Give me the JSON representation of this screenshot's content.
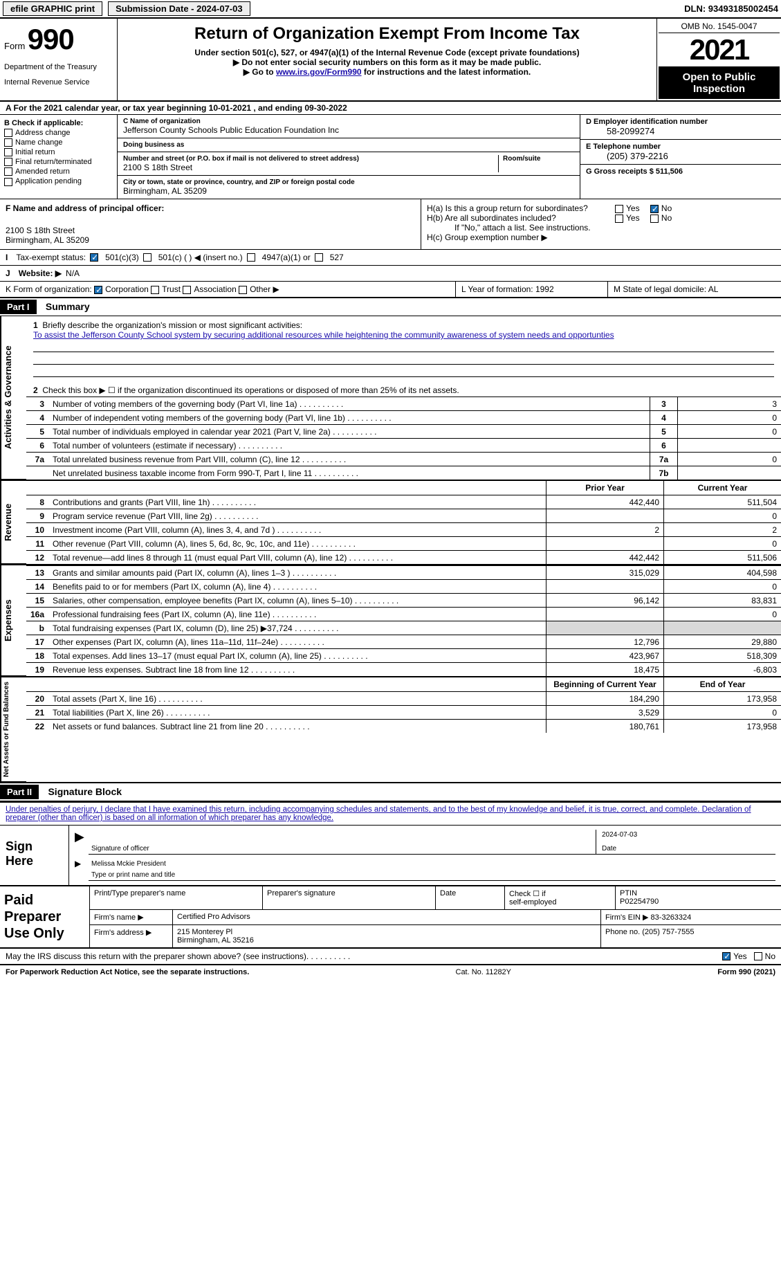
{
  "topbar": {
    "efile": "efile GRAPHIC print",
    "submission": "Submission Date - 2024-07-03",
    "dln": "DLN: 93493185002454"
  },
  "header": {
    "form_prefix": "Form",
    "form_number": "990",
    "treasury": "Department of the Treasury",
    "irs": "Internal Revenue Service",
    "title": "Return of Organization Exempt From Income Tax",
    "sub1": "Under section 501(c), 527, or 4947(a)(1) of the Internal Revenue Code (except private foundations)",
    "sub2": "▶ Do not enter social security numbers on this form as it may be made public.",
    "sub3_pre": "▶ Go to ",
    "sub3_link": "www.irs.gov/Form990",
    "sub3_post": " for instructions and the latest information.",
    "omb": "OMB No. 1545-0047",
    "year": "2021",
    "inspect": "Open to Public Inspection"
  },
  "lineA": "A For the 2021 calendar year, or tax year beginning 10-01-2021    , and ending 09-30-2022",
  "colB": {
    "head": "B Check if applicable:",
    "items": [
      "Address change",
      "Name change",
      "Initial return",
      "Final return/terminated",
      "Amended return",
      "Application pending"
    ]
  },
  "colC": {
    "name_label": "C Name of organization",
    "name": "Jefferson County Schools Public Education Foundation Inc",
    "dba_label": "Doing business as",
    "dba": "",
    "street_label": "Number and street (or P.O. box if mail is not delivered to street address)",
    "room_label": "Room/suite",
    "street": "2100 S 18th Street",
    "city_label": "City or town, state or province, country, and ZIP or foreign postal code",
    "city": "Birmingham, AL  35209"
  },
  "colDE": {
    "d_label": "D Employer identification number",
    "d_val": "58-2099274",
    "e_label": "E Telephone number",
    "e_val": "(205) 379-2216",
    "g_label": "G Gross receipts $ 511,506"
  },
  "blockF": {
    "label": "F Name and address of principal officer:",
    "line1": "2100 S 18th Street",
    "line2": "Birmingham, AL  35209"
  },
  "blockH": {
    "ha_label": "H(a)  Is this a group return for subordinates?",
    "hb_label": "H(b)  Are all subordinates included?",
    "hb_note": "If \"No,\" attach a list. See instructions.",
    "hc_label": "H(c)  Group exemption number ▶"
  },
  "rowI": {
    "lead": "I",
    "label": "Tax-exempt status:",
    "opt1": "501(c)(3)",
    "opt2": "501(c) (  ) ◀ (insert no.)",
    "opt3": "4947(a)(1) or",
    "opt4": "527"
  },
  "rowJ": {
    "lead": "J",
    "label": "Website: ▶",
    "val": "N/A"
  },
  "rowK": {
    "lead": "K",
    "label": "Form of organization:",
    "opts": [
      "Corporation",
      "Trust",
      "Association",
      "Other ▶"
    ],
    "L": "L Year of formation: 1992",
    "M": "M State of legal domicile: AL"
  },
  "partI": {
    "hdr": "Part I",
    "title": "Summary"
  },
  "summary": {
    "sec1_label": "Activities & Governance",
    "sec2_label": "Revenue",
    "sec3_label": "Expenses",
    "sec4_label": "Net Assets or Fund Balances",
    "line1_label": "Briefly describe the organization's mission or most significant activities:",
    "line1_text": "To assist the Jefferson County School system by securing additional resources while heightening the community awareness of system needs and opportunties",
    "line2": "Check this box ▶ ☐ if the organization discontinued its operations or disposed of more than 25% of its net assets.",
    "rows_a": [
      {
        "n": "3",
        "t": "Number of voting members of the governing body (Part VI, line 1a)",
        "b": "3",
        "v": "3"
      },
      {
        "n": "4",
        "t": "Number of independent voting members of the governing body (Part VI, line 1b)",
        "b": "4",
        "v": "0"
      },
      {
        "n": "5",
        "t": "Total number of individuals employed in calendar year 2021 (Part V, line 2a)",
        "b": "5",
        "v": "0"
      },
      {
        "n": "6",
        "t": "Total number of volunteers (estimate if necessary)",
        "b": "6",
        "v": ""
      },
      {
        "n": "7a",
        "t": "Total unrelated business revenue from Part VIII, column (C), line 12",
        "b": "7a",
        "v": "0"
      },
      {
        "n": "",
        "t": "Net unrelated business taxable income from Form 990-T, Part I, line 11",
        "b": "7b",
        "v": ""
      }
    ],
    "hdr_py": "Prior Year",
    "hdr_cy": "Current Year",
    "rows_rev": [
      {
        "n": "8",
        "t": "Contributions and grants (Part VIII, line 1h)",
        "py": "442,440",
        "cy": "511,504"
      },
      {
        "n": "9",
        "t": "Program service revenue (Part VIII, line 2g)",
        "py": "",
        "cy": "0"
      },
      {
        "n": "10",
        "t": "Investment income (Part VIII, column (A), lines 3, 4, and 7d )",
        "py": "2",
        "cy": "2"
      },
      {
        "n": "11",
        "t": "Other revenue (Part VIII, column (A), lines 5, 6d, 8c, 9c, 10c, and 11e)",
        "py": "",
        "cy": "0"
      },
      {
        "n": "12",
        "t": "Total revenue—add lines 8 through 11 (must equal Part VIII, column (A), line 12)",
        "py": "442,442",
        "cy": "511,506"
      }
    ],
    "rows_exp": [
      {
        "n": "13",
        "t": "Grants and similar amounts paid (Part IX, column (A), lines 1–3 )",
        "py": "315,029",
        "cy": "404,598"
      },
      {
        "n": "14",
        "t": "Benefits paid to or for members (Part IX, column (A), line 4)",
        "py": "",
        "cy": "0"
      },
      {
        "n": "15",
        "t": "Salaries, other compensation, employee benefits (Part IX, column (A), lines 5–10)",
        "py": "96,142",
        "cy": "83,831"
      },
      {
        "n": "16a",
        "t": "Professional fundraising fees (Part IX, column (A), line 11e)",
        "py": "",
        "cy": "0"
      },
      {
        "n": "b",
        "t": "Total fundraising expenses (Part IX, column (D), line 25) ▶37,724",
        "py": "SHADE",
        "cy": "SHADE"
      },
      {
        "n": "17",
        "t": "Other expenses (Part IX, column (A), lines 11a–11d, 11f–24e)",
        "py": "12,796",
        "cy": "29,880"
      },
      {
        "n": "18",
        "t": "Total expenses. Add lines 13–17 (must equal Part IX, column (A), line 25)",
        "py": "423,967",
        "cy": "518,309"
      },
      {
        "n": "19",
        "t": "Revenue less expenses. Subtract line 18 from line 12",
        "py": "18,475",
        "cy": "-6,803"
      }
    ],
    "hdr_by": "Beginning of Current Year",
    "hdr_ey": "End of Year",
    "rows_net": [
      {
        "n": "20",
        "t": "Total assets (Part X, line 16)",
        "py": "184,290",
        "cy": "173,958"
      },
      {
        "n": "21",
        "t": "Total liabilities (Part X, line 26)",
        "py": "3,529",
        "cy": "0"
      },
      {
        "n": "22",
        "t": "Net assets or fund balances. Subtract line 21 from line 20",
        "py": "180,761",
        "cy": "173,958"
      }
    ]
  },
  "partII": {
    "hdr": "Part II",
    "title": "Signature Block"
  },
  "sig": {
    "note": "Under penalties of perjury, I declare that I have examined this return, including accompanying schedules and statements, and to the best of my knowledge and belief, it is true, correct, and complete. Declaration of preparer (other than officer) is based on all information of which preparer has any knowledge.",
    "sign_here": "Sign Here",
    "sig_label": "Signature of officer",
    "date_val": "2024-07-03",
    "date_label": "Date",
    "name_val": "Melissa Mckie  President",
    "name_label": "Type or print name and title"
  },
  "prep": {
    "title": "Paid Preparer Use Only",
    "h1": "Print/Type preparer's name",
    "h2": "Preparer's signature",
    "h3": "Date",
    "h4a": "Check ☐ if",
    "h4b": "self-employed",
    "h5_label": "PTIN",
    "h5_val": "P02254790",
    "firm_name_label": "Firm's name     ▶",
    "firm_name": "Certified Pro Advisors",
    "firm_ein": "Firm's EIN ▶ 83-3263324",
    "firm_addr_label": "Firm's address ▶",
    "firm_addr1": "215 Monterey Pl",
    "firm_addr2": "Birmingham, AL  35216",
    "firm_phone": "Phone no. (205) 757-7555"
  },
  "discuss": {
    "text": "May the IRS discuss this return with the preparer shown above? (see instructions)",
    "yes": "Yes",
    "no": "No"
  },
  "footer": {
    "left": "For Paperwork Reduction Act Notice, see the separate instructions.",
    "mid": "Cat. No. 11282Y",
    "right": "Form 990 (2021)"
  }
}
